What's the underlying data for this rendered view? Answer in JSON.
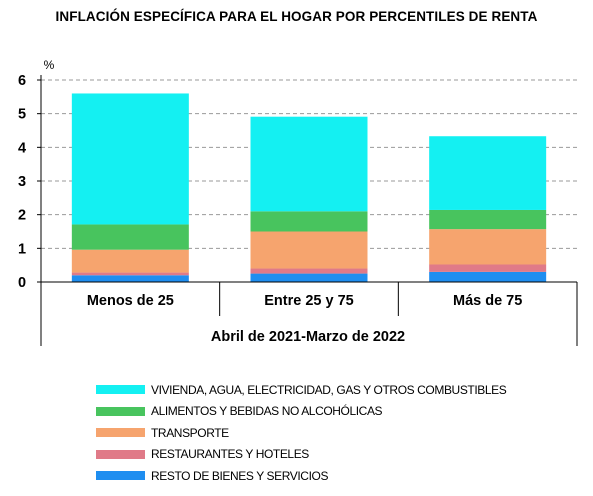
{
  "chart_data": {
    "type": "bar",
    "stacked": true,
    "title": "INFLACIÓN ESPECÍFICA PARA EL HOGAR POR PERCENTILES DE RENTA",
    "ylabel": "%",
    "xlabel": "Abril de 2021-Marzo de 2022",
    "ylim": [
      0,
      6
    ],
    "yticks": [
      "0",
      "1",
      "2",
      "3",
      "4",
      "5",
      "6"
    ],
    "grid": true,
    "legend_position": "bottom",
    "categories": [
      "Menos de 25",
      "Entre 25 y 75",
      "Más de 75"
    ],
    "series": [
      {
        "name": "RESTO DE BIENES Y SERVICIOS",
        "color": "#1f8ef0",
        "values": [
          0.2,
          0.25,
          0.3
        ]
      },
      {
        "name": "RESTAURANTES Y HOTELES",
        "color": "#e07a88",
        "values": [
          0.08,
          0.15,
          0.22
        ]
      },
      {
        "name": "TRANSPORTE",
        "color": "#f6a46e",
        "values": [
          0.68,
          1.1,
          1.05
        ]
      },
      {
        "name": "ALIMENTOS Y BEBIDAS NO ALCOHÓLICAS",
        "color": "#48c45e",
        "values": [
          0.75,
          0.6,
          0.57
        ]
      },
      {
        "name": "VIVIENDA, AGUA, ELECTRICIDAD, GAS Y OTROS COMBUSTIBLES",
        "color": "#14f0f2",
        "values": [
          3.89,
          2.81,
          2.19
        ]
      }
    ]
  }
}
